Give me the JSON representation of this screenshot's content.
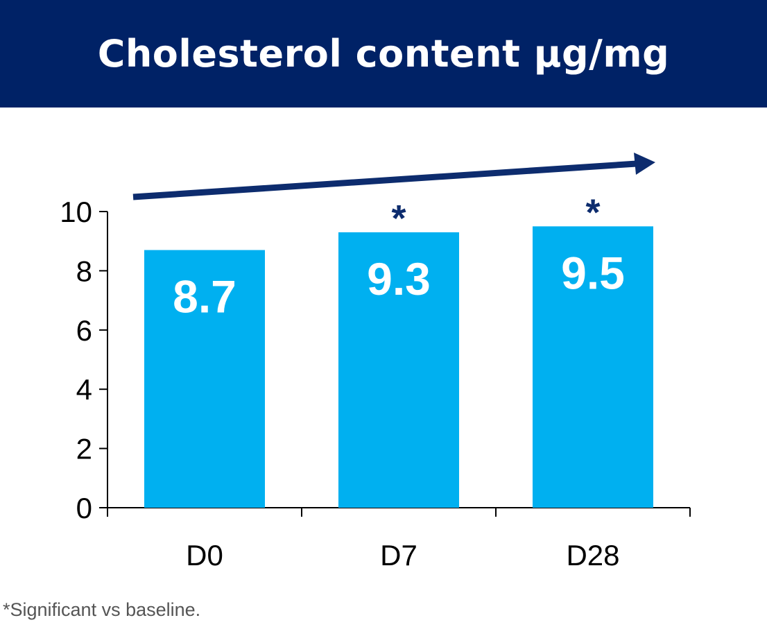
{
  "chart_data": {
    "type": "bar",
    "title": "Cholesterol content µg/mg",
    "categories": [
      "D0",
      "D7",
      "D28"
    ],
    "values": [
      8.7,
      9.3,
      9.5
    ],
    "data_labels": [
      "8.7",
      "9.3",
      "9.5"
    ],
    "significance_markers": [
      "",
      "*",
      "*"
    ],
    "ylim": [
      0,
      10
    ],
    "yticks": [
      0,
      2,
      4,
      6,
      8,
      10
    ],
    "grid": false,
    "trend_arrow": "increasing",
    "xlabel": "",
    "ylabel": ""
  },
  "colors": {
    "header_background": "#002266",
    "bar_fill": "#00B0F0",
    "arrow": "#0D2C6E",
    "marker": "#0D2C6E",
    "axis": "#000000"
  },
  "footnote": "*Significant vs baseline."
}
